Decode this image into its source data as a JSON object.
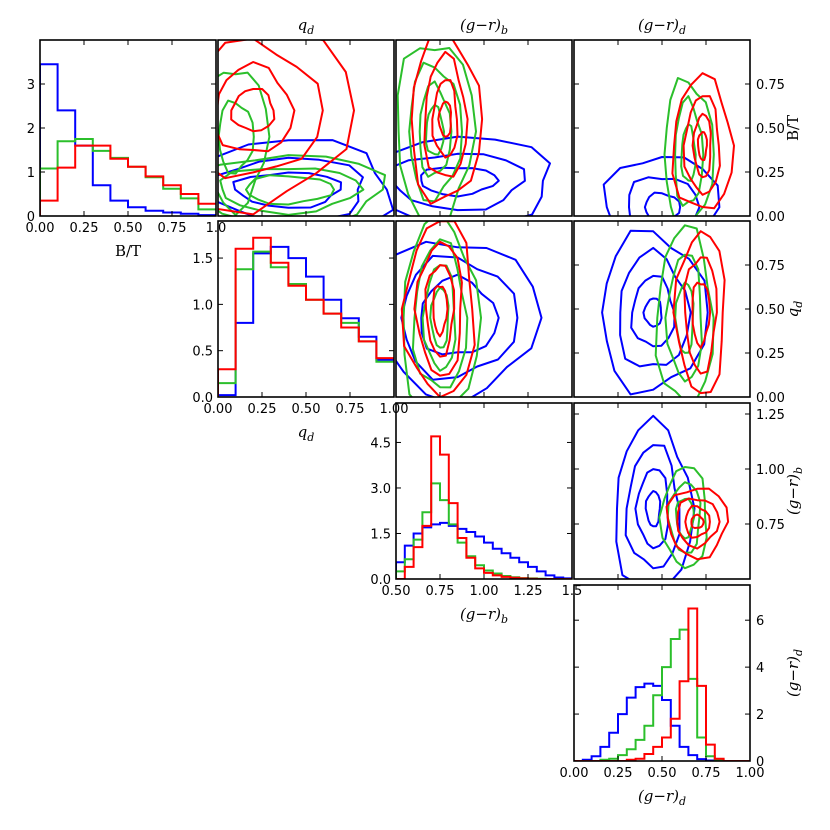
{
  "figure": {
    "series_colors": [
      "#0000ff",
      "#2bbf2b",
      "#ff0000"
    ]
  },
  "chart_data": [
    {
      "id": "hist_bt",
      "type": "histogram",
      "xlabel": "B/T",
      "xlim": [
        0,
        1
      ],
      "ylim": [
        0,
        4
      ],
      "xticks": [
        "0.00",
        "0.25",
        "0.50",
        "0.75",
        "1.0"
      ],
      "yticks": [
        "0",
        "1",
        "2",
        "3"
      ],
      "edges": [
        0,
        0.1,
        0.2,
        0.3,
        0.4,
        0.5,
        0.6,
        0.7,
        0.8,
        0.9,
        1.0
      ],
      "series": [
        {
          "color": "#0000ff",
          "values": [
            3.45,
            2.4,
            1.6,
            0.7,
            0.35,
            0.2,
            0.12,
            0.08,
            0.05,
            0.02
          ]
        },
        {
          "color": "#2bbf2b",
          "values": [
            1.08,
            1.7,
            1.75,
            1.48,
            1.32,
            1.12,
            0.88,
            0.62,
            0.4,
            0.15
          ]
        },
        {
          "color": "#ff0000",
          "values": [
            0.35,
            1.1,
            1.6,
            1.6,
            1.3,
            1.12,
            0.9,
            0.7,
            0.5,
            0.28
          ]
        }
      ]
    },
    {
      "id": "hist_qd",
      "type": "histogram",
      "xlabel": "q_d",
      "xlim": [
        0,
        1
      ],
      "ylim": [
        0,
        1.9
      ],
      "xticks": [
        "0.00",
        "0.25",
        "0.50",
        "0.75",
        "1.00"
      ],
      "yticks": [
        "0.0",
        "0.5",
        "1.0",
        "1.5"
      ],
      "edges": [
        0,
        0.1,
        0.2,
        0.3,
        0.4,
        0.5,
        0.6,
        0.7,
        0.8,
        0.9,
        1.0
      ],
      "series": [
        {
          "color": "#0000ff",
          "values": [
            0.02,
            0.8,
            1.55,
            1.62,
            1.5,
            1.3,
            1.05,
            0.85,
            0.65,
            0.4
          ]
        },
        {
          "color": "#2bbf2b",
          "values": [
            0.15,
            1.38,
            1.57,
            1.4,
            1.22,
            1.05,
            0.9,
            0.8,
            0.6,
            0.38
          ]
        },
        {
          "color": "#ff0000",
          "values": [
            0.3,
            1.6,
            1.72,
            1.45,
            1.2,
            1.05,
            0.9,
            0.75,
            0.6,
            0.42
          ]
        }
      ]
    },
    {
      "id": "hist_grb",
      "type": "histogram",
      "xlabel": "(g−r)_b",
      "xlim": [
        0.5,
        1.5
      ],
      "ylim": [
        0,
        5.8
      ],
      "xticks": [
        "0.50",
        "0.75",
        "1.00",
        "1.25",
        "1.5"
      ],
      "yticks": [
        "0.0",
        "1.5",
        "3.0",
        "4.5"
      ],
      "edges": [
        0.5,
        0.55,
        0.6,
        0.65,
        0.7,
        0.75,
        0.8,
        0.85,
        0.9,
        0.95,
        1.0,
        1.05,
        1.1,
        1.15,
        1.2,
        1.25,
        1.3,
        1.35,
        1.4,
        1.45,
        1.5
      ],
      "series": [
        {
          "color": "#0000ff",
          "values": [
            0.55,
            1.1,
            1.5,
            1.7,
            1.8,
            1.85,
            1.75,
            1.65,
            1.55,
            1.4,
            1.2,
            1.0,
            0.85,
            0.7,
            0.55,
            0.4,
            0.25,
            0.12,
            0.05,
            0.02
          ]
        },
        {
          "color": "#2bbf2b",
          "values": [
            0.25,
            0.65,
            1.3,
            2.2,
            3.15,
            2.6,
            1.8,
            1.2,
            0.75,
            0.45,
            0.28,
            0.18,
            0.1,
            0.06,
            0.03,
            0.02,
            0.01,
            0.0,
            0.0,
            0.0
          ]
        },
        {
          "color": "#ff0000",
          "values": [
            0.0,
            0.4,
            1.05,
            1.75,
            4.7,
            4.1,
            2.5,
            1.35,
            0.7,
            0.35,
            0.2,
            0.12,
            0.07,
            0.04,
            0.02,
            0.01,
            0.0,
            0.0,
            0.0,
            0.0
          ]
        }
      ]
    },
    {
      "id": "hist_grd",
      "type": "histogram",
      "xlabel": "(g−r)_d",
      "ylabel": "(g−r)_d",
      "xlim": [
        0,
        1
      ],
      "ylim": [
        0,
        7.5
      ],
      "xticks": [
        "0.00",
        "0.25",
        "0.50",
        "0.75",
        "1.00"
      ],
      "yticks": [
        "0",
        "2",
        "4",
        "6"
      ],
      "edges": [
        0,
        0.05,
        0.1,
        0.15,
        0.2,
        0.25,
        0.3,
        0.35,
        0.4,
        0.45,
        0.5,
        0.55,
        0.6,
        0.65,
        0.7,
        0.75,
        0.8,
        0.85,
        0.9,
        0.95,
        1.0
      ],
      "series": [
        {
          "color": "#0000ff",
          "values": [
            0.0,
            0.05,
            0.2,
            0.6,
            1.2,
            2.0,
            2.7,
            3.15,
            3.3,
            3.2,
            2.6,
            1.5,
            0.6,
            0.25,
            0.08,
            0.02,
            0.0,
            0.0,
            0.0,
            0.0
          ]
        },
        {
          "color": "#2bbf2b",
          "values": [
            0.0,
            0.0,
            0.0,
            0.05,
            0.1,
            0.25,
            0.5,
            0.9,
            1.5,
            2.8,
            4.0,
            5.2,
            5.6,
            3.5,
            1.0,
            0.2,
            0.05,
            0.0,
            0.0,
            0.0
          ]
        },
        {
          "color": "#ff0000",
          "values": [
            0.0,
            0.0,
            0.0,
            0.0,
            0.0,
            0.0,
            0.05,
            0.1,
            0.3,
            0.6,
            1.0,
            1.8,
            3.4,
            6.5,
            3.2,
            0.7,
            0.1,
            0.0,
            0.0,
            0.0
          ]
        }
      ]
    },
    {
      "id": "contour_bt_qd",
      "type": "contour",
      "title": "q_d",
      "xlim": [
        0,
        1
      ],
      "ylim": [
        0,
        1
      ],
      "series": [
        {
          "color": "#0000ff",
          "blobs": [
            {
              "cx": 0.4,
              "cy": 0.15,
              "rx": [
                0.6,
                0.45,
                0.3
              ],
              "ry": [
                0.28,
                0.18,
                0.1
              ]
            }
          ]
        },
        {
          "color": "#2bbf2b",
          "blobs": [
            {
              "cx": 0.4,
              "cy": 0.15,
              "rx": [
                0.55,
                0.4,
                0.25
              ],
              "ry": [
                0.2,
                0.13,
                0.08
              ]
            },
            {
              "cx": 0.1,
              "cy": 0.45,
              "rx": [
                0.18,
                0.1
              ],
              "ry": [
                0.4,
                0.2
              ]
            }
          ]
        },
        {
          "color": "#ff0000",
          "blobs": [
            {
              "cx": 0.2,
              "cy": 0.6,
              "rx": [
                0.55,
                0.38,
                0.22,
                0.12
              ],
              "ry": [
                0.55,
                0.38,
                0.25,
                0.12
              ]
            }
          ]
        }
      ]
    },
    {
      "id": "contour_bt_grb",
      "type": "contour",
      "title": "(g−r)_b",
      "xlim": [
        0.5,
        1.5
      ],
      "ylim": [
        0,
        1
      ],
      "series": [
        {
          "color": "#0000ff",
          "blobs": [
            {
              "cx": 0.85,
              "cy": 0.2,
              "rx": [
                0.55,
                0.38,
                0.22
              ],
              "ry": [
                0.25,
                0.16,
                0.08
              ]
            }
          ]
        },
        {
          "color": "#2bbf2b",
          "blobs": [
            {
              "cx": 0.72,
              "cy": 0.48,
              "rx": [
                0.22,
                0.15,
                0.09,
                0.05
              ],
              "ry": [
                0.52,
                0.38,
                0.26,
                0.14
              ]
            }
          ]
        },
        {
          "color": "#ff0000",
          "blobs": [
            {
              "cx": 0.78,
              "cy": 0.55,
              "rx": [
                0.2,
                0.12,
                0.07,
                0.035
              ],
              "ry": [
                0.48,
                0.35,
                0.22,
                0.1
              ]
            }
          ]
        }
      ]
    },
    {
      "id": "contour_bt_grd",
      "type": "contour",
      "title": "(g−r)_d",
      "ylabel": "B/T",
      "xlim": [
        0,
        1
      ],
      "ylim": [
        0,
        1
      ],
      "yticks": [
        "0.00",
        "0.25",
        "0.50",
        "0.75"
      ],
      "series": [
        {
          "color": "#0000ff",
          "blobs": [
            {
              "cx": 0.5,
              "cy": 0.05,
              "rx": [
                0.32,
                0.2,
                0.1
              ],
              "ry": [
                0.3,
                0.18,
                0.08
              ]
            }
          ]
        },
        {
          "color": "#2bbf2b",
          "blobs": [
            {
              "cx": 0.65,
              "cy": 0.35,
              "rx": [
                0.14,
                0.08,
                0.04
              ],
              "ry": [
                0.42,
                0.3,
                0.16
              ]
            }
          ]
        },
        {
          "color": "#ff0000",
          "blobs": [
            {
              "cx": 0.73,
              "cy": 0.4,
              "rx": [
                0.17,
                0.1,
                0.05,
                0.025
              ],
              "ry": [
                0.38,
                0.28,
                0.18,
                0.08
              ]
            }
          ]
        }
      ]
    },
    {
      "id": "contour_qd_grb",
      "type": "contour",
      "xlim": [
        0.5,
        1.5
      ],
      "ylim": [
        0,
        1
      ],
      "series": [
        {
          "color": "#0000ff",
          "blobs": [
            {
              "cx": 0.85,
              "cy": 0.45,
              "rx": [
                0.45,
                0.33,
                0.22
              ],
              "ry": [
                0.45,
                0.34,
                0.22
              ]
            }
          ]
        },
        {
          "color": "#2bbf2b",
          "blobs": [
            {
              "cx": 0.75,
              "cy": 0.45,
              "rx": [
                0.22,
                0.15,
                0.09,
                0.05
              ],
              "ry": [
                0.55,
                0.42,
                0.3,
                0.17
              ]
            }
          ]
        },
        {
          "color": "#ff0000",
          "blobs": [
            {
              "cx": 0.75,
              "cy": 0.5,
              "rx": [
                0.2,
                0.13,
                0.08,
                0.04
              ],
              "ry": [
                0.5,
                0.38,
                0.26,
                0.14
              ]
            }
          ]
        }
      ]
    },
    {
      "id": "contour_qd_grd",
      "type": "contour",
      "ylabel": "q_d",
      "xlim": [
        0,
        1
      ],
      "ylim": [
        0,
        1
      ],
      "yticks": [
        "0.00",
        "0.25",
        "0.50",
        "0.75"
      ],
      "series": [
        {
          "color": "#0000ff",
          "blobs": [
            {
              "cx": 0.45,
              "cy": 0.48,
              "rx": [
                0.3,
                0.2,
                0.12,
                0.05
              ],
              "ry": [
                0.45,
                0.33,
                0.2,
                0.08
              ]
            }
          ]
        },
        {
          "color": "#2bbf2b",
          "blobs": [
            {
              "cx": 0.63,
              "cy": 0.45,
              "rx": [
                0.16,
                0.1,
                0.05
              ],
              "ry": [
                0.5,
                0.36,
                0.2
              ]
            }
          ]
        },
        {
          "color": "#ff0000",
          "blobs": [
            {
              "cx": 0.72,
              "cy": 0.48,
              "rx": [
                0.14,
                0.09,
                0.05
              ],
              "ry": [
                0.46,
                0.33,
                0.18
              ]
            }
          ]
        }
      ]
    },
    {
      "id": "contour_grb_grd",
      "type": "contour",
      "ylabel": "(g−r)_b",
      "xlim": [
        0,
        1
      ],
      "ylim": [
        0.5,
        1.3
      ],
      "yticks": [
        "0.75",
        "1.00",
        "1.25"
      ],
      "series": [
        {
          "color": "#0000ff",
          "blobs": [
            {
              "cx": 0.45,
              "cy": 0.82,
              "rx": [
                0.22,
                0.15,
                0.09,
                0.04
              ],
              "ry": [
                0.38,
                0.28,
                0.18,
                0.08
              ]
            }
          ]
        },
        {
          "color": "#2bbf2b",
          "blobs": [
            {
              "cx": 0.63,
              "cy": 0.78,
              "rx": [
                0.13,
                0.09,
                0.05
              ],
              "ry": [
                0.23,
                0.16,
                0.09
              ]
            }
          ]
        },
        {
          "color": "#ff0000",
          "blobs": [
            {
              "cx": 0.7,
              "cy": 0.76,
              "rx": [
                0.17,
                0.12,
                0.07,
                0.035
              ],
              "ry": [
                0.16,
                0.11,
                0.07,
                0.03
              ]
            }
          ]
        }
      ]
    }
  ]
}
